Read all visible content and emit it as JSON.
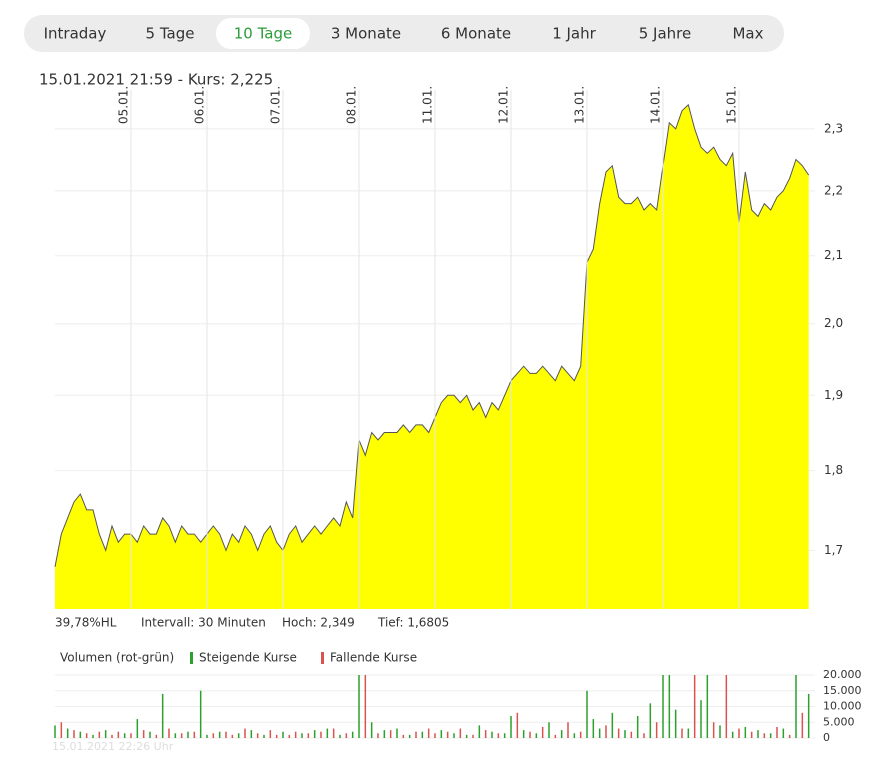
{
  "tabs": [
    "Intraday",
    "5 Tage",
    "10 Tage",
    "3 Monate",
    "6 Monate",
    "1 Jahr",
    "5 Jahre",
    "Max"
  ],
  "active_tab": 2,
  "header": "15.01.2021 21:59  -  Kurs: 2,225",
  "stats": [
    "39,78%HL",
    "Intervall: 30 Minuten",
    "Hoch: 2,349",
    "Tief: 1,6805"
  ],
  "timestamp": "15.01.2021 22:26 Uhr",
  "chart_data": [
    {
      "type": "area",
      "color": "#ffff00",
      "line_color": "#555555",
      "log": true,
      "grid": true,
      "values": [
        1.68,
        1.72,
        1.74,
        1.76,
        1.77,
        1.75,
        1.75,
        1.72,
        1.7,
        1.73,
        1.71,
        1.72,
        1.72,
        1.71,
        1.73,
        1.72,
        1.72,
        1.74,
        1.73,
        1.71,
        1.73,
        1.72,
        1.72,
        1.71,
        1.72,
        1.73,
        1.72,
        1.7,
        1.72,
        1.71,
        1.73,
        1.72,
        1.7,
        1.72,
        1.73,
        1.71,
        1.7,
        1.72,
        1.73,
        1.71,
        1.72,
        1.73,
        1.72,
        1.73,
        1.74,
        1.73,
        1.76,
        1.74,
        1.84,
        1.82,
        1.85,
        1.84,
        1.85,
        1.85,
        1.85,
        1.86,
        1.85,
        1.86,
        1.86,
        1.85,
        1.87,
        1.89,
        1.9,
        1.9,
        1.89,
        1.9,
        1.88,
        1.89,
        1.87,
        1.89,
        1.88,
        1.9,
        1.92,
        1.93,
        1.94,
        1.93,
        1.93,
        1.94,
        1.93,
        1.92,
        1.94,
        1.93,
        1.92,
        1.94,
        2.09,
        2.11,
        2.18,
        2.23,
        2.24,
        2.19,
        2.18,
        2.18,
        2.19,
        2.17,
        2.18,
        2.17,
        2.24,
        2.31,
        2.3,
        2.33,
        2.34,
        2.3,
        2.27,
        2.26,
        2.27,
        2.25,
        2.24,
        2.26,
        2.15,
        2.23,
        2.17,
        2.16,
        2.18,
        2.17,
        2.19,
        2.2,
        2.22,
        2.25,
        2.24,
        2.225
      ],
      "xlim": [
        0,
        120
      ],
      "xticks": [
        {
          "value": 12,
          "label": "05.01."
        },
        {
          "value": 24,
          "label": "06.01."
        },
        {
          "value": 36,
          "label": "07.01."
        },
        {
          "value": 48,
          "label": "08.01."
        },
        {
          "value": 60,
          "label": "11.01."
        },
        {
          "value": 72,
          "label": "12.01."
        },
        {
          "value": 84,
          "label": "13.01."
        },
        {
          "value": 96,
          "label": "14.01."
        },
        {
          "value": 108,
          "label": "15.01."
        }
      ],
      "ylim": [
        1.63,
        2.365
      ],
      "yticks": [
        {
          "value": 1.7,
          "label": "1,7"
        },
        {
          "value": 1.8,
          "label": "1,8"
        },
        {
          "value": 1.9,
          "label": "1,9"
        },
        {
          "value": 2.0,
          "label": "2,0"
        },
        {
          "value": 2.1,
          "label": "2,1"
        },
        {
          "value": 2.2,
          "label": "2,2"
        },
        {
          "value": 2.3,
          "label": "2,3"
        }
      ]
    },
    {
      "type": "bar",
      "title": "Volumen (rot-grün)",
      "xlim": [
        0,
        120
      ],
      "grid": true,
      "ylim": [
        0,
        20000
      ],
      "yticks": [
        0,
        {
          "value": 5000,
          "label": "5.000"
        },
        {
          "value": 10000,
          "label": "10.000"
        },
        {
          "value": 15000,
          "label": "15.000"
        },
        {
          "value": 20000,
          "label": "20.000"
        }
      ],
      "series": [
        {
          "name": "Steigende Kurse",
          "color": "#2ca02c",
          "values": [
            4000,
            0,
            3000,
            0,
            2000,
            0,
            1000,
            0,
            2500,
            0,
            0,
            1500,
            0,
            6000,
            0,
            2000,
            0,
            14000,
            0,
            1500,
            0,
            2000,
            0,
            15000,
            1000,
            0,
            2000,
            0,
            0,
            1500,
            0,
            2500,
            0,
            1000,
            0,
            0,
            2000,
            0,
            0,
            1500,
            0,
            2500,
            0,
            3000,
            0,
            1000,
            0,
            2000,
            20000,
            0,
            5000,
            0,
            2500,
            0,
            3000,
            0,
            1000,
            0,
            2000,
            0,
            0,
            2500,
            0,
            1500,
            0,
            1000,
            0,
            4000,
            0,
            2000,
            0,
            1500,
            7000,
            0,
            2500,
            0,
            1500,
            0,
            5000,
            0,
            2500,
            0,
            1500,
            0,
            15000,
            6000,
            3000,
            0,
            8000,
            0,
            2500,
            0,
            7000,
            0,
            11000,
            0,
            20000,
            20000,
            9000,
            0,
            3000,
            0,
            12000,
            20000,
            0,
            4000,
            0,
            2000,
            0,
            3500,
            0,
            2500,
            0,
            1500,
            0,
            3000,
            0,
            20000,
            0,
            14000
          ]
        },
        {
          "name": "Fallende Kurse",
          "color": "#d9534f",
          "values": [
            0,
            5000,
            0,
            2500,
            0,
            1500,
            0,
            2000,
            0,
            1000,
            2000,
            0,
            1500,
            0,
            2500,
            0,
            1000,
            0,
            3000,
            0,
            1500,
            0,
            2000,
            0,
            0,
            1500,
            0,
            2000,
            1000,
            0,
            3000,
            0,
            1500,
            0,
            2500,
            1000,
            0,
            1000,
            2000,
            0,
            1500,
            0,
            2000,
            0,
            3000,
            0,
            1500,
            0,
            0,
            20000,
            0,
            1500,
            0,
            2500,
            0,
            1000,
            0,
            2000,
            0,
            3000,
            1500,
            0,
            2000,
            0,
            3000,
            0,
            1000,
            0,
            2500,
            0,
            1500,
            0,
            0,
            8000,
            0,
            2000,
            0,
            3500,
            0,
            1000,
            0,
            5000,
            0,
            2000,
            0,
            0,
            0,
            4000,
            0,
            3000,
            0,
            2000,
            0,
            1500,
            0,
            5000,
            0,
            0,
            0,
            3000,
            0,
            20000,
            0,
            0,
            5000,
            0,
            20000,
            0,
            3000,
            0,
            2000,
            0,
            1500,
            0,
            3500,
            0,
            1000,
            0,
            8000,
            0
          ]
        }
      ]
    }
  ]
}
